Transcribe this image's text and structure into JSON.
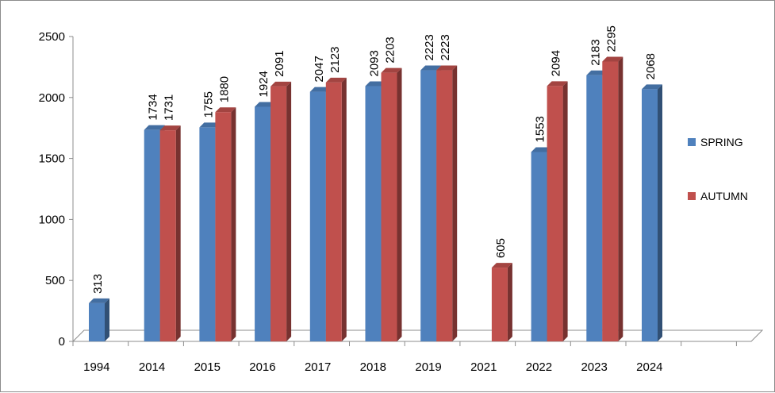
{
  "chart_data": {
    "type": "bar",
    "categories": [
      "1994",
      "2014",
      "2015",
      "2016",
      "2017",
      "2018",
      "2019",
      "2021",
      "2022",
      "2023",
      "2024"
    ],
    "series": [
      {
        "name": "SPRING",
        "values": [
          313,
          1734,
          1755,
          1924,
          2047,
          2093,
          2223,
          null,
          1553,
          2183,
          2068
        ],
        "color": "#4f81bd"
      },
      {
        "name": "AUTUMN",
        "values": [
          null,
          1731,
          1880,
          2091,
          2123,
          2203,
          2223,
          605,
          2094,
          2295,
          null
        ],
        "color": "#c0504d"
      }
    ],
    "title": "",
    "xlabel": "",
    "ylabel": "",
    "ylim": [
      0,
      2500
    ],
    "yticks": [
      "0",
      "500",
      "1000",
      "1500",
      "2000",
      "2500"
    ],
    "grid": false,
    "legend": "right",
    "data_labels": true
  }
}
